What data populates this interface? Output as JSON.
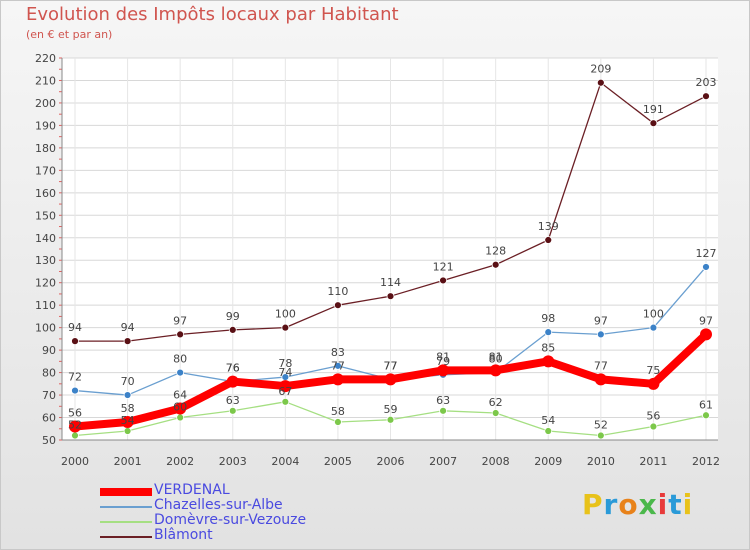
{
  "title": "Evolution des Impôts locaux par Habitant",
  "subtitle": "(en € et par an)",
  "logo": {
    "letters": [
      "P",
      "r",
      "o",
      "x",
      "i",
      "t",
      "i"
    ],
    "colors": [
      "#e8c21a",
      "#2a9ad8",
      "#e8821a",
      "#4bb84b",
      "#e83a3a",
      "#2a9ad8",
      "#e8c21a"
    ]
  },
  "chart_data": {
    "type": "line",
    "x": [
      "2000",
      "2001",
      "2002",
      "2003",
      "2004",
      "2005",
      "2006",
      "2007",
      "2008",
      "2009",
      "2010",
      "2011",
      "2012"
    ],
    "ylim": [
      50,
      220
    ],
    "yticks": [
      50,
      60,
      70,
      80,
      90,
      100,
      110,
      120,
      130,
      140,
      150,
      160,
      170,
      180,
      190,
      200,
      210,
      220
    ],
    "grid": true,
    "legend_position": "bottom-left",
    "series": [
      {
        "name": "Blâmont",
        "color": "#6b1f25",
        "marker": "#5a1015",
        "values": [
          94,
          94,
          97,
          99,
          100,
          110,
          114,
          121,
          128,
          139,
          209,
          191,
          203
        ]
      },
      {
        "name": "Chazelles-sur-Albe",
        "color": "#6a9fd0",
        "marker": "#3c82c8",
        "values": [
          72,
          70,
          80,
          76,
          78,
          83,
          77,
          79,
          80,
          98,
          97,
          100,
          127
        ]
      },
      {
        "name": "Domèvre-sur-Vezouze",
        "color": "#a5df82",
        "marker": "#7cc84a",
        "values": [
          52,
          54,
          60,
          63,
          67,
          58,
          59,
          63,
          62,
          54,
          52,
          56,
          61
        ]
      },
      {
        "name": "VERDENAL",
        "color": "#ff0000",
        "marker": "#ff0000",
        "values": [
          56,
          58,
          64,
          76,
          74,
          77,
          77,
          81,
          81,
          85,
          77,
          75,
          97
        ]
      }
    ],
    "data_labels": [
      {
        "series": "Blâmont",
        "labels": [
          "94",
          "94",
          "97",
          "99",
          "100",
          "110",
          "114",
          "121",
          "128",
          "139",
          "209",
          "191",
          "203"
        ]
      },
      {
        "series": "Chazelles-sur-Albe",
        "labels": [
          "72",
          "70",
          "80",
          "76",
          "78",
          "83",
          "77",
          "79",
          "80",
          "98",
          "97",
          "100",
          "127"
        ]
      },
      {
        "series": "Domèvre-sur-Vezouze",
        "labels": [
          "52",
          "54",
          "60",
          "63",
          "67",
          "58",
          "59",
          "63",
          "62",
          "54",
          "52",
          "56",
          "61"
        ]
      },
      {
        "series": "VERDENAL",
        "labels": [
          "56",
          "58",
          "64",
          "76",
          "74",
          "77",
          "77",
          "81",
          "81",
          "85",
          "77",
          "75",
          "97"
        ]
      }
    ],
    "legend_order": [
      "VERDENAL",
      "Chazelles-sur-Albe",
      "Domèvre-sur-Vezouze",
      "Blâmont"
    ]
  }
}
